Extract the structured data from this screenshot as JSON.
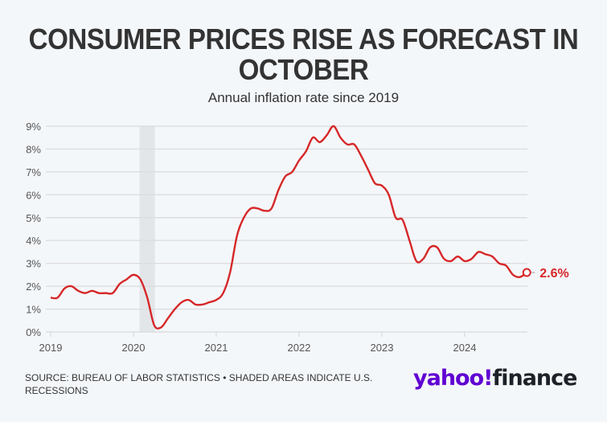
{
  "header": {
    "title": "CONSUMER PRICES RISE AS FORECAST IN OCTOBER",
    "subtitle": "Annual inflation rate since 2019"
  },
  "footer": {
    "source": "SOURCE: BUREAU OF LABOR STATISTICS • SHADED AREAS INDICATE U.S. RECESSIONS",
    "logo_yahoo": "yahoo!",
    "logo_finance": "finance"
  },
  "colors": {
    "line": "#d62728",
    "grid": "#dddddd",
    "recession": "#e3e6e9",
    "text": "#333333",
    "axis_text": "#555555"
  },
  "chart_data": {
    "type": "line",
    "title": "CONSUMER PRICES RISE AS FORECAST IN OCTOBER",
    "subtitle": "Annual inflation rate since 2019",
    "xlabel": "",
    "ylabel": "",
    "ylim": [
      0,
      9
    ],
    "yticks": [
      "0%",
      "1%",
      "2%",
      "3%",
      "4%",
      "5%",
      "6%",
      "7%",
      "8%",
      "9%"
    ],
    "xticks": [
      "2019",
      "2020",
      "2021",
      "2022",
      "2023",
      "2024"
    ],
    "grid": true,
    "x_start": "2019-01",
    "x_end": "2024-10",
    "series": [
      {
        "name": "Annual inflation rate",
        "frequency": "monthly",
        "values": [
          1.5,
          1.5,
          1.9,
          2.0,
          1.8,
          1.7,
          1.8,
          1.7,
          1.7,
          1.7,
          2.1,
          2.3,
          2.5,
          2.3,
          1.5,
          0.3,
          0.2,
          0.6,
          1.0,
          1.3,
          1.4,
          1.2,
          1.2,
          1.3,
          1.4,
          1.7,
          2.6,
          4.2,
          5.0,
          5.4,
          5.4,
          5.3,
          5.4,
          6.2,
          6.8,
          7.0,
          7.5,
          7.9,
          8.5,
          8.3,
          8.6,
          9.0,
          8.5,
          8.2,
          8.2,
          7.7,
          7.1,
          6.5,
          6.4,
          6.0,
          5.0,
          4.9,
          4.0,
          3.1,
          3.2,
          3.7,
          3.7,
          3.2,
          3.1,
          3.3,
          3.1,
          3.2,
          3.5,
          3.4,
          3.3,
          3.0,
          2.9,
          2.5,
          2.4,
          2.6
        ]
      }
    ],
    "recessions": [
      {
        "start": "2020-02",
        "end": "2020-04"
      }
    ],
    "annotation": {
      "label": "2.6%",
      "at": "2024-10",
      "value": 2.6
    }
  }
}
